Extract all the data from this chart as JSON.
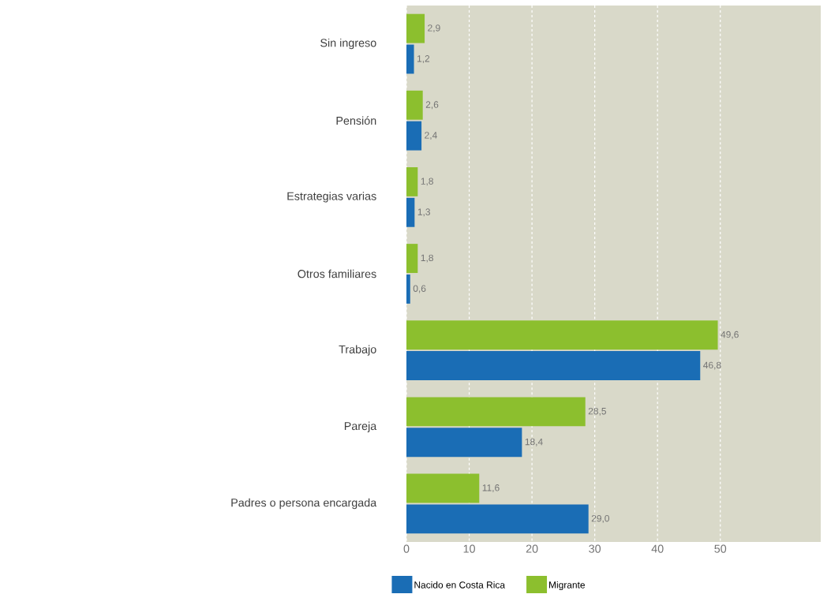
{
  "chart_data": {
    "type": "bar",
    "orientation": "horizontal",
    "categories": [
      "Sin ingreso",
      "Pensión",
      "Estrategias varias",
      "Otros familiares",
      "Trabajo",
      "Pareja",
      "Padres o persona encargada"
    ],
    "series": [
      {
        "name": "Nacido en Costa Rica",
        "color": "#1a6db5",
        "values": [
          1.2,
          2.4,
          1.3,
          0.6,
          46.8,
          18.4,
          29.0
        ],
        "value_labels": [
          "1,2",
          "2,4",
          "1,3",
          "0,6",
          "46,8",
          "18,4",
          "29,0"
        ]
      },
      {
        "name": "Migrante",
        "color": "#8cbf2e",
        "values": [
          2.9,
          2.6,
          1.8,
          1.8,
          49.6,
          28.5,
          11.6
        ],
        "value_labels": [
          "2,9",
          "2,6",
          "1,8",
          "1,8",
          "49,6",
          "28,5",
          "11,6"
        ]
      }
    ],
    "xlim": [
      0,
      66
    ],
    "xticks": [
      0,
      10,
      20,
      30,
      40,
      50
    ],
    "grid": "x",
    "legend": "bottom"
  }
}
